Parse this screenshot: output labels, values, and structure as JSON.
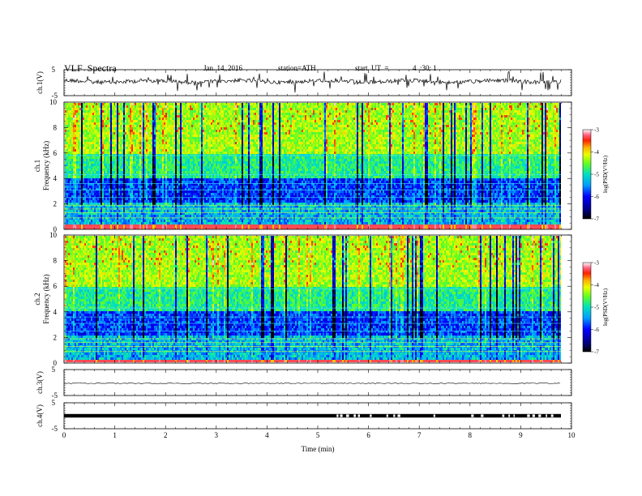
{
  "header": {
    "title": "VLF  Spectra",
    "date": "Jan. 14, 2016",
    "station": "station=ATH",
    "start_label": "start  UT  =",
    "start_time": "4  :30: 1"
  },
  "chart_data": [
    {
      "type": "line",
      "panel": "ch1-waveform",
      "ylabel": "ch.1(V)",
      "ylim": [
        -5,
        5
      ],
      "y_ticks": [
        "5",
        "-5"
      ],
      "xlim": [
        0,
        10
      ],
      "trace_mean": 0.5,
      "trace_extent_min": 9.8
    },
    {
      "type": "heatmap",
      "panel": "ch1-spectrogram",
      "ylabel_lines": [
        "ch.1",
        "Frequency  (kHz)"
      ],
      "ylim": [
        0,
        10
      ],
      "y_ticks": [
        "0",
        "2",
        "4",
        "6",
        "8",
        "10"
      ],
      "xlim": [
        0,
        10
      ],
      "colorbar": {
        "label": "log(PSD(V²/Hz)",
        "range": [
          -7,
          -3
        ],
        "ticks": [
          "-3",
          "-4",
          "-5",
          "-6",
          "-7"
        ]
      }
    },
    {
      "type": "heatmap",
      "panel": "ch2-spectrogram",
      "ylabel_lines": [
        "ch.2",
        "Frequency  (kHz)"
      ],
      "ylim": [
        0,
        10
      ],
      "y_ticks": [
        "0",
        "2",
        "4",
        "6",
        "8",
        "10"
      ],
      "xlim": [
        0,
        10
      ],
      "colorbar": {
        "label": "log(PSD(V²/Hz)",
        "range": [
          -7,
          -3
        ],
        "ticks": [
          "-3",
          "-4",
          "-5",
          "-6",
          "-7"
        ]
      }
    },
    {
      "type": "line",
      "panel": "ch3-waveform",
      "ylabel": "ch.3(V)",
      "ylim": [
        -5,
        5
      ],
      "y_ticks": [
        "5",
        "-5"
      ],
      "xlim": [
        0,
        10
      ],
      "trace_mean": -0.3
    },
    {
      "type": "line",
      "panel": "ch4-waveform",
      "ylabel": "ch.4(V)",
      "ylim": [
        -5,
        5
      ],
      "y_ticks": [
        "5",
        "-5"
      ],
      "xlim": [
        0,
        10
      ],
      "trace_mean": 0.0,
      "xlabel": "Time  (min)",
      "x_ticks": [
        "0",
        "1",
        "2",
        "3",
        "4",
        "5",
        "6",
        "7",
        "8",
        "9",
        "10"
      ]
    }
  ]
}
